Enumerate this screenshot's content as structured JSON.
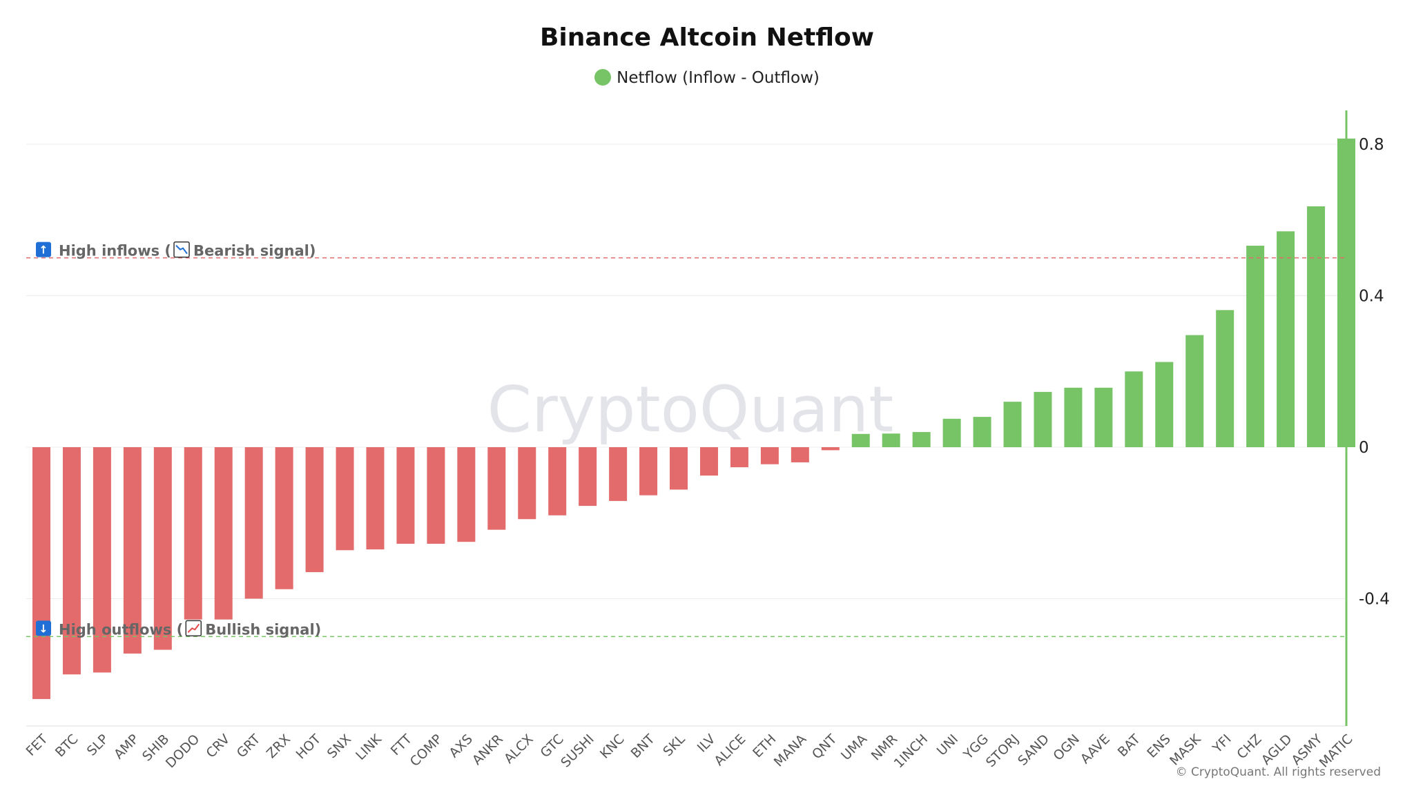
{
  "chart_data": {
    "type": "bar",
    "title": "Binance Altcoin Netflow",
    "legend": {
      "label": "Netflow (Inflow - Outflow)",
      "position": "top-center"
    },
    "colors": {
      "positive": "#77c466",
      "negative": "#e36b6b",
      "axis": "#77c466",
      "grid": "#ececec"
    },
    "categories": [
      "FET",
      "BTC",
      "SLP",
      "AMP",
      "SHIB",
      "DODO",
      "CRV",
      "GRT",
      "ZRX",
      "HOT",
      "SNX",
      "LINK",
      "FTT",
      "COMP",
      "AXS",
      "ANKR",
      "ALCX",
      "GTC",
      "SUSHI",
      "KNC",
      "BNT",
      "SKL",
      "ILV",
      "ALICE",
      "ETH",
      "MANA",
      "QNT",
      "UMA",
      "NMR",
      "1INCH",
      "UNI",
      "YGG",
      "STORJ",
      "SAND",
      "OGN",
      "AAVE",
      "BAT",
      "ENS",
      "MASK",
      "YFI",
      "CHZ",
      "AGLD",
      "ASMY",
      "MATIC"
    ],
    "values": [
      -0.665,
      -0.6,
      -0.595,
      -0.545,
      -0.535,
      -0.455,
      -0.455,
      -0.4,
      -0.375,
      -0.33,
      -0.272,
      -0.27,
      -0.255,
      -0.255,
      -0.25,
      -0.218,
      -0.19,
      -0.18,
      -0.155,
      -0.142,
      -0.127,
      -0.112,
      -0.075,
      -0.053,
      -0.045,
      -0.04,
      -0.008,
      0.035,
      0.036,
      0.04,
      0.075,
      0.08,
      0.12,
      0.146,
      0.157,
      0.157,
      0.2,
      0.225,
      0.296,
      0.362,
      0.532,
      0.57,
      0.636,
      0.815
    ],
    "yticks": [
      0.8,
      0.4,
      0,
      -0.4
    ],
    "ytick_labels": [
      "0.8",
      "0.4",
      "0",
      "-0.4"
    ],
    "ylim": [
      -0.74,
      0.88
    ],
    "grid": true,
    "xlabel": "",
    "ylabel": "",
    "annotations": [
      {
        "label": "High inflows",
        "signal": "Bearish signal",
        "y": 0.5,
        "color": "#e36b6b",
        "arrow_glyph": "↑",
        "signal_glyph": "📉"
      },
      {
        "label": "High outflows",
        "signal": "Bullish signal",
        "y": -0.5,
        "color": "#77c466",
        "arrow_glyph": "↓",
        "signal_glyph": "📈"
      }
    ]
  },
  "watermark": "CryptoQuant",
  "copyright": "© CryptoQuant. All rights reserved"
}
